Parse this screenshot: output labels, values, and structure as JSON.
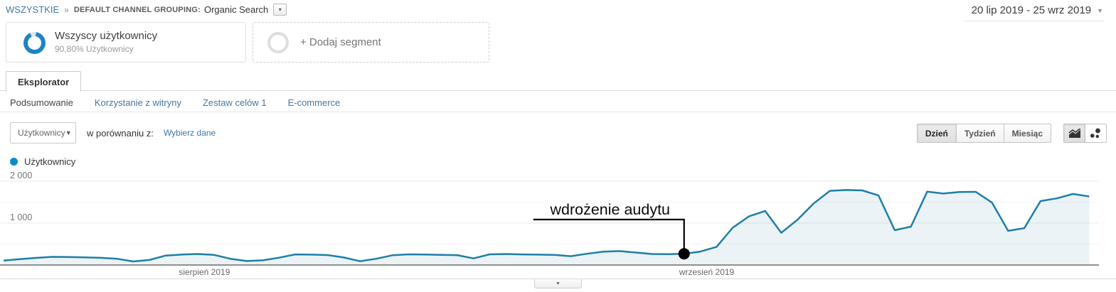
{
  "header": {
    "breadcrumb": {
      "all_label": "WSZYSTKIE",
      "separator": "»",
      "group_label": "DEFAULT CHANNEL GROUPING:",
      "group_value": "Organic Search"
    },
    "date_range": "20 lip 2019 - 25 wrz 2019"
  },
  "segments": {
    "active": {
      "title": "Wszyscy użytkownicy",
      "subtitle": "90,80% Użytkownicy",
      "percent": 90.8
    },
    "add_label": "+ Dodaj segment"
  },
  "tabs": {
    "main": "Eksplorator",
    "sub": [
      {
        "label": "Podsumowanie",
        "active": true
      },
      {
        "label": "Korzystanie z witryny",
        "active": false
      },
      {
        "label": "Zestaw celów 1",
        "active": false
      },
      {
        "label": "E-commerce",
        "active": false
      }
    ]
  },
  "controls": {
    "metric_select": "Użytkownicy",
    "compare_label": "w porównaniu z:",
    "compare_link": "Wybierz dane",
    "granularity": [
      {
        "label": "Dzień",
        "active": true
      },
      {
        "label": "Tydzień",
        "active": false
      },
      {
        "label": "Miesiąc",
        "active": false
      }
    ]
  },
  "legend": {
    "label": "Użytkownicy",
    "color": "#058dc7"
  },
  "annotation": {
    "text": "wdrożenie audytu",
    "day_index": 42,
    "value": 268
  },
  "chart_data": {
    "type": "area",
    "title": "Użytkownicy — dziennie (Organic Search)",
    "x_start_label": "20 lip 2019",
    "x_end_label": "25 wrz 2019",
    "ylim": [
      0,
      2000
    ],
    "grid": true,
    "legend_position": "top-left",
    "line_color": "#1d7fa8",
    "fill_opacity": 0.09,
    "y_ticks": [
      {
        "label": "2 000",
        "value": 2000
      },
      {
        "label": "1 000",
        "value": 1000
      }
    ],
    "x_month_ticks": [
      {
        "label": "sierpień 2019",
        "day_index": 12
      },
      {
        "label": "wrzesień 2019",
        "day_index": 43
      }
    ],
    "values": [
      105,
      140,
      170,
      195,
      190,
      182,
      172,
      150,
      85,
      120,
      225,
      250,
      262,
      240,
      150,
      95,
      112,
      175,
      252,
      248,
      238,
      180,
      90,
      150,
      232,
      255,
      250,
      242,
      236,
      158,
      255,
      262,
      252,
      248,
      242,
      210,
      268,
      318,
      332,
      298,
      262,
      258,
      268,
      320,
      430,
      890,
      1160,
      1290,
      770,
      1080,
      1470,
      1770,
      1790,
      1780,
      1660,
      830,
      915,
      1750,
      1705,
      1740,
      1745,
      1490,
      815,
      880,
      1525,
      1590,
      1695,
      1635
    ]
  },
  "misc": {
    "dropdown_caret": "▾",
    "collapse_caret": "▼"
  }
}
